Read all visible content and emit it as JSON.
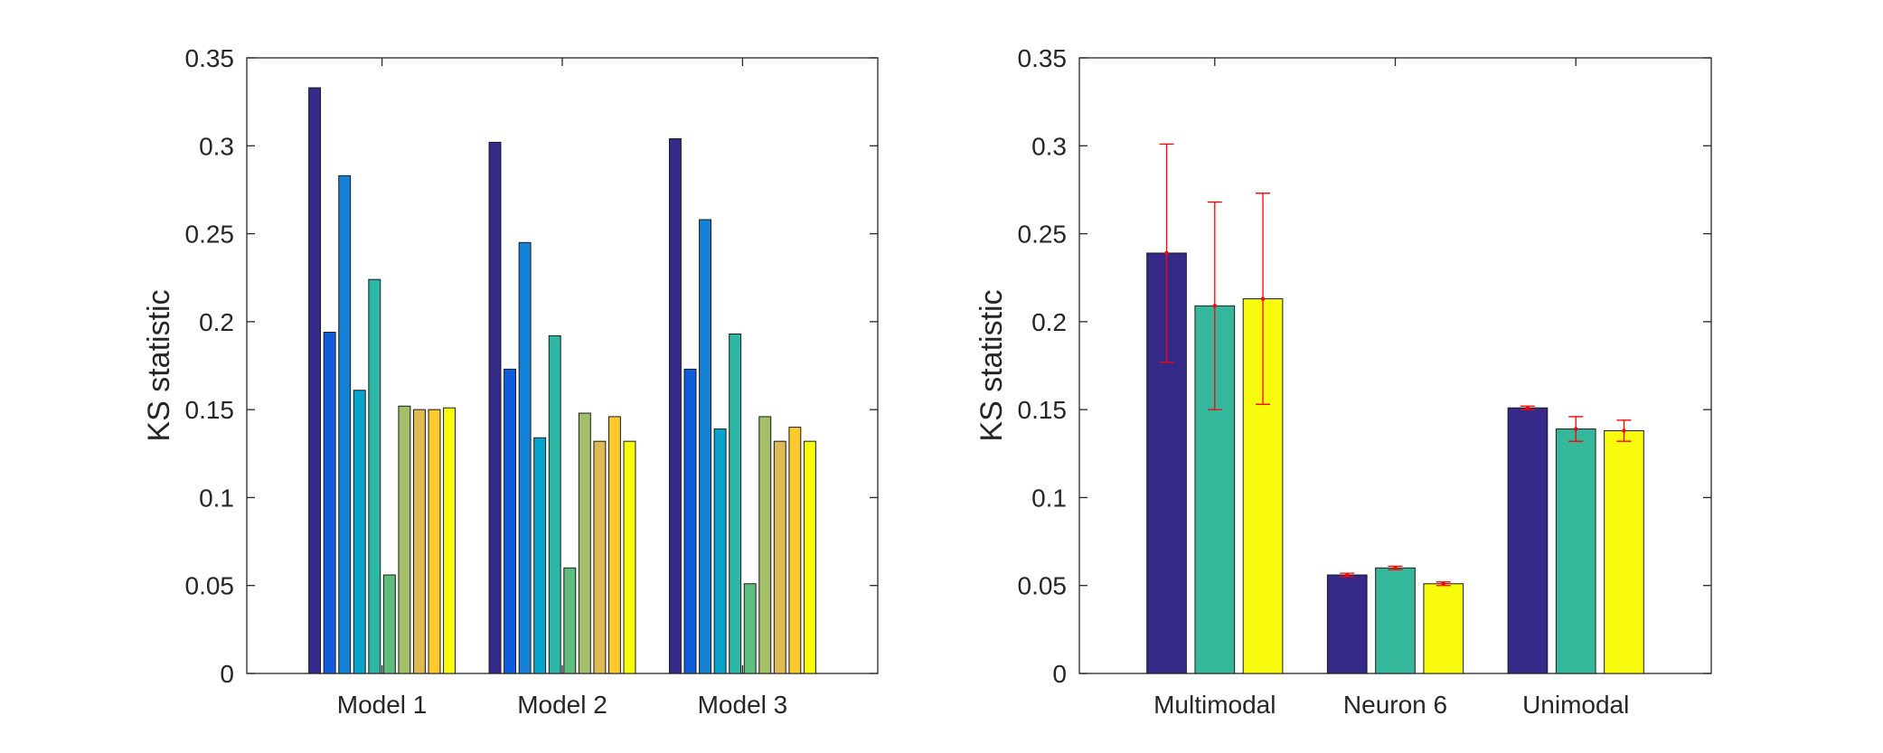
{
  "chart_data": [
    {
      "type": "bar",
      "ylabel": "KS statistic",
      "ylim": [
        0,
        0.35
      ],
      "yticks": [
        "0",
        "0.05",
        "0.1",
        "0.15",
        "0.2",
        "0.25",
        "0.3",
        "0.35"
      ],
      "categories": [
        "Model 1",
        "Model 2",
        "Model 3"
      ],
      "colors": [
        "#352a87",
        "#0f5cdd",
        "#1481d6",
        "#06a4ca",
        "#2eb7a4",
        "#5dbe7f",
        "#a5be6a",
        "#dfb952",
        "#fcca2f",
        "#f9fb0e"
      ],
      "series": [
        {
          "values": [
            0.333,
            0.302,
            0.304
          ]
        },
        {
          "values": [
            0.194,
            0.173,
            0.173
          ]
        },
        {
          "values": [
            0.283,
            0.245,
            0.258
          ]
        },
        {
          "values": [
            0.161,
            0.134,
            0.139
          ]
        },
        {
          "values": [
            0.224,
            0.192,
            0.193
          ]
        },
        {
          "values": [
            0.056,
            0.06,
            0.051
          ]
        },
        {
          "values": [
            0.152,
            0.148,
            0.146
          ]
        },
        {
          "values": [
            0.15,
            0.132,
            0.132
          ]
        },
        {
          "values": [
            0.15,
            0.146,
            0.14
          ]
        },
        {
          "values": [
            0.151,
            0.132,
            0.132
          ]
        }
      ]
    },
    {
      "type": "bar",
      "ylabel": "KS statistic",
      "ylim": [
        0,
        0.35
      ],
      "yticks": [
        "0",
        "0.05",
        "0.1",
        "0.15",
        "0.2",
        "0.25",
        "0.3",
        "0.35"
      ],
      "categories": [
        "Multimodal",
        "Neuron 6",
        "Unimodal"
      ],
      "colors": [
        "#352a87",
        "#35b79b",
        "#f9fb0e"
      ],
      "error_color": "#ff0000",
      "series": [
        {
          "values": [
            0.239,
            0.056,
            0.151
          ],
          "errors": [
            0.062,
            0.001,
            0.001
          ]
        },
        {
          "values": [
            0.209,
            0.06,
            0.139
          ],
          "errors": [
            0.059,
            0.001,
            0.007
          ]
        },
        {
          "values": [
            0.213,
            0.051,
            0.138
          ],
          "errors": [
            0.06,
            0.001,
            0.006
          ]
        }
      ]
    }
  ]
}
